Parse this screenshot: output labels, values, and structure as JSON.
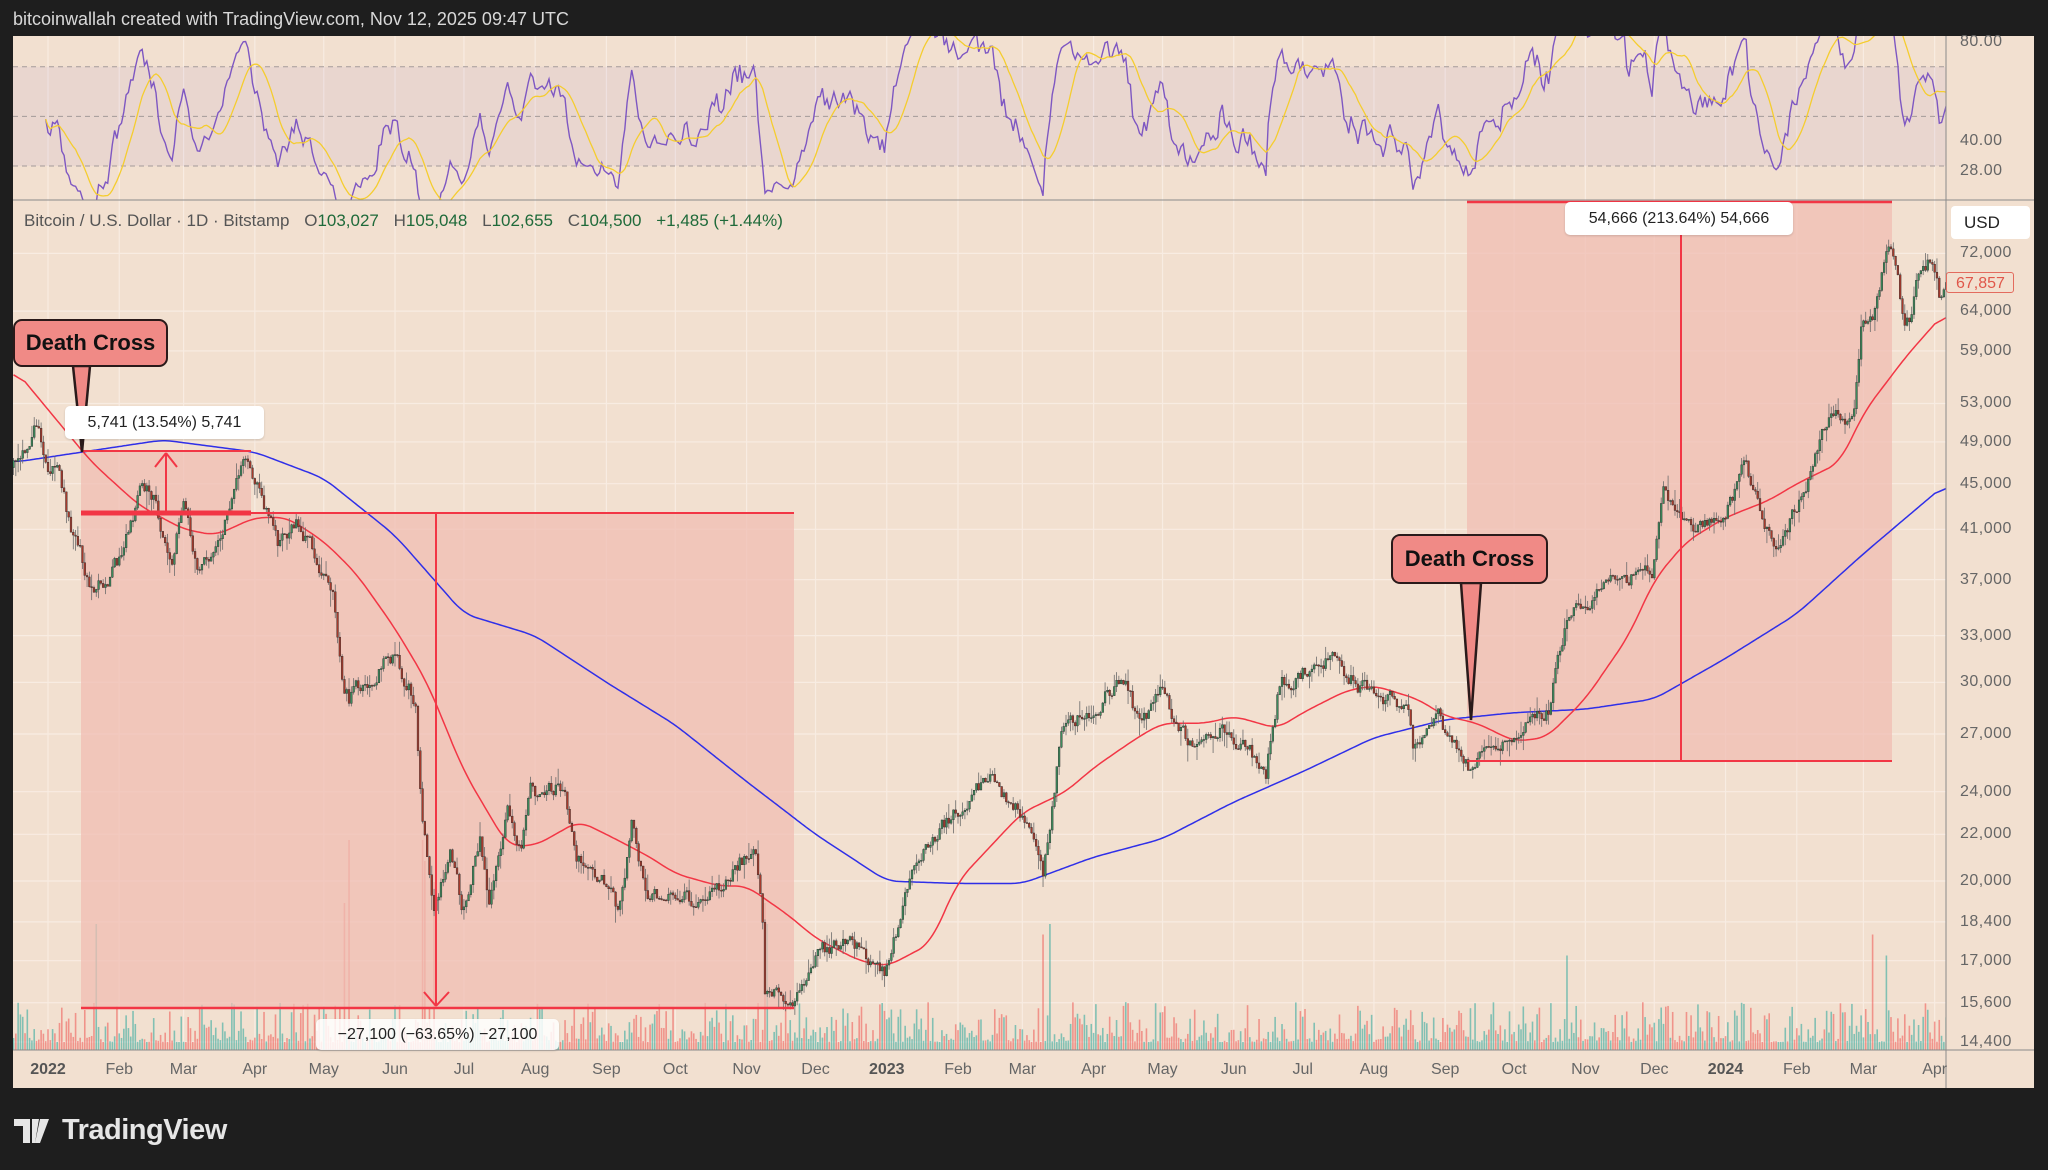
{
  "header": {
    "caption": "bitcoinwallah created with TradingView.com, Nov 12, 2025 09:47 UTC"
  },
  "legend": {
    "symbol": "Bitcoin / U.S. Dollar · 1D · Bitstamp",
    "ohlc": [
      {
        "k": "O",
        "v": "103,027"
      },
      {
        "k": "H",
        "v": "105,048"
      },
      {
        "k": "L",
        "v": "102,655"
      },
      {
        "k": "C",
        "v": "104,500"
      }
    ],
    "change": "+1,485 (+1.44%)"
  },
  "price_axis": {
    "currency": "USD",
    "last_price": "67,857"
  },
  "annotations": {
    "death_cross_1": "Death Cross",
    "death_cross_2": "Death Cross",
    "measure_1": "5,741 (13.54%) 5,741",
    "measure_2": "−27,100 (−63.65%) −27,100",
    "measure_3": "54,666 (213.64%) 54,666"
  },
  "branding": {
    "logo_text": "TradingView"
  },
  "colors": {
    "up": "#3d8a5c",
    "down": "#a63a2c",
    "ma50": "#f23645",
    "ma200": "#2f2fe8",
    "rsi": "#7e57c2",
    "rsi_ma": "#f5cd2f",
    "measure_fill": "#f0bdb3",
    "measure_line": "#f23645"
  },
  "chart_data": {
    "type": "candlestick",
    "title": "Bitcoin / U.S. Dollar · 1D · Bitstamp",
    "y_scale": "log",
    "ylim": [
      14400,
      76000
    ],
    "price_ticks": [
      72000,
      64000,
      59000,
      53000,
      49000,
      45000,
      41000,
      37000,
      33000,
      30000,
      27000,
      24000,
      22000,
      20000,
      18400,
      17000,
      15600,
      14400
    ],
    "price_tick_labels": [
      "72,000",
      "64,000",
      "59,000",
      "53,000",
      "49,000",
      "45,000",
      "41,000",
      "37,000",
      "33,000",
      "30,000",
      "27,000",
      "24,000",
      "22,000",
      "20,000",
      "18,400",
      "17,000",
      "15,600",
      "14,400"
    ],
    "time_ticks": [
      {
        "label": "2022",
        "date": "2022-01-01",
        "bold": true
      },
      {
        "label": "Feb",
        "date": "2022-02-01"
      },
      {
        "label": "Mar",
        "date": "2022-03-01"
      },
      {
        "label": "Apr",
        "date": "2022-04-01"
      },
      {
        "label": "May",
        "date": "2022-05-01"
      },
      {
        "label": "Jun",
        "date": "2022-06-01"
      },
      {
        "label": "Jul",
        "date": "2022-07-01"
      },
      {
        "label": "Aug",
        "date": "2022-08-01"
      },
      {
        "label": "Sep",
        "date": "2022-09-01"
      },
      {
        "label": "Oct",
        "date": "2022-10-01"
      },
      {
        "label": "Nov",
        "date": "2022-11-01"
      },
      {
        "label": "Dec",
        "date": "2022-12-01"
      },
      {
        "label": "2023",
        "date": "2023-01-01",
        "bold": true
      },
      {
        "label": "Feb",
        "date": "2023-02-01"
      },
      {
        "label": "Mar",
        "date": "2023-03-01"
      },
      {
        "label": "Apr",
        "date": "2023-04-01"
      },
      {
        "label": "May",
        "date": "2023-05-01"
      },
      {
        "label": "Jun",
        "date": "2023-06-01"
      },
      {
        "label": "Jul",
        "date": "2023-07-01"
      },
      {
        "label": "Aug",
        "date": "2023-08-01"
      },
      {
        "label": "Sep",
        "date": "2023-09-01"
      },
      {
        "label": "Oct",
        "date": "2023-10-01"
      },
      {
        "label": "Nov",
        "date": "2023-11-01"
      },
      {
        "label": "Dec",
        "date": "2023-12-01"
      },
      {
        "label": "2024",
        "date": "2024-01-01",
        "bold": true
      },
      {
        "label": "Feb",
        "date": "2024-02-01"
      },
      {
        "label": "Mar",
        "date": "2024-03-01"
      },
      {
        "label": "Apr",
        "date": "2024-04-01"
      }
    ],
    "close_keypoints": [
      [
        "2021-12-17",
        46500
      ],
      [
        "2021-12-27",
        50700
      ],
      [
        "2022-01-01",
        47000
      ],
      [
        "2022-01-05",
        46000
      ],
      [
        "2022-01-10",
        41800
      ],
      [
        "2022-01-21",
        36000
      ],
      [
        "2022-01-24",
        36500
      ],
      [
        "2022-02-01",
        38500
      ],
      [
        "2022-02-10",
        44000
      ],
      [
        "2022-02-16",
        44000
      ],
      [
        "2022-02-24",
        38000
      ],
      [
        "2022-03-01",
        44000
      ],
      [
        "2022-03-07",
        38000
      ],
      [
        "2022-03-15",
        39000
      ],
      [
        "2022-03-28",
        47000
      ],
      [
        "2022-04-01",
        45800
      ],
      [
        "2022-04-11",
        39500
      ],
      [
        "2022-04-20",
        41500
      ],
      [
        "2022-04-30",
        38000
      ],
      [
        "2022-05-05",
        36500
      ],
      [
        "2022-05-09",
        30000
      ],
      [
        "2022-05-12",
        29000
      ],
      [
        "2022-05-31",
        31700
      ],
      [
        "2022-06-10",
        29000
      ],
      [
        "2022-06-13",
        22500
      ],
      [
        "2022-06-18",
        19000
      ],
      [
        "2022-06-25",
        21300
      ],
      [
        "2022-06-30",
        19000
      ],
      [
        "2022-07-08",
        21600
      ],
      [
        "2022-07-12",
        19300
      ],
      [
        "2022-07-20",
        23200
      ],
      [
        "2022-07-26",
        21000
      ],
      [
        "2022-07-30",
        23800
      ],
      [
        "2022-08-14",
        24400
      ],
      [
        "2022-08-19",
        21200
      ],
      [
        "2022-08-31",
        20000
      ],
      [
        "2022-09-06",
        18800
      ],
      [
        "2022-09-12",
        22300
      ],
      [
        "2022-09-19",
        19500
      ],
      [
        "2022-09-30",
        19400
      ],
      [
        "2022-10-13",
        19200
      ],
      [
        "2022-10-25",
        20100
      ],
      [
        "2022-10-29",
        20800
      ],
      [
        "2022-11-05",
        21300
      ],
      [
        "2022-11-08",
        18500
      ],
      [
        "2022-11-09",
        15800
      ],
      [
        "2022-11-21",
        15800
      ],
      [
        "2022-11-30",
        17100
      ],
      [
        "2022-12-14",
        17800
      ],
      [
        "2022-12-31",
        16550
      ],
      [
        "2023-01-14",
        20900
      ],
      [
        "2023-01-31",
        23100
      ],
      [
        "2023-02-16",
        24500
      ],
      [
        "2023-02-28",
        23100
      ],
      [
        "2023-03-10",
        20100
      ],
      [
        "2023-03-18",
        27400
      ],
      [
        "2023-03-31",
        28400
      ],
      [
        "2023-04-14",
        30400
      ],
      [
        "2023-04-21",
        27300
      ],
      [
        "2023-04-30",
        29200
      ],
      [
        "2023-05-12",
        26800
      ],
      [
        "2023-05-31",
        27200
      ],
      [
        "2023-06-15",
        25000
      ],
      [
        "2023-06-21",
        30000
      ],
      [
        "2023-07-13",
        31400
      ],
      [
        "2023-07-31",
        29200
      ],
      [
        "2023-08-16",
        28700
      ],
      [
        "2023-08-18",
        26100
      ],
      [
        "2023-08-29",
        27700
      ],
      [
        "2023-09-11",
        25100
      ],
      [
        "2023-09-30",
        27000
      ],
      [
        "2023-10-16",
        28500
      ],
      [
        "2023-10-24",
        34500
      ],
      [
        "2023-10-31",
        34600
      ],
      [
        "2023-11-09",
        36700
      ],
      [
        "2023-11-30",
        37700
      ],
      [
        "2023-12-05",
        44000
      ],
      [
        "2023-12-17",
        41400
      ],
      [
        "2023-12-31",
        42300
      ],
      [
        "2024-01-10",
        46600
      ],
      [
        "2024-01-22",
        39500
      ],
      [
        "2024-01-31",
        42500
      ],
      [
        "2024-02-09",
        47100
      ],
      [
        "2024-02-15",
        51800
      ],
      [
        "2024-02-26",
        51800
      ],
      [
        "2024-02-29",
        61200
      ],
      [
        "2024-03-05",
        63800
      ],
      [
        "2024-03-11",
        72000
      ],
      [
        "2024-03-14",
        71400
      ],
      [
        "2024-03-19",
        62000
      ],
      [
        "2024-03-22",
        63800
      ],
      [
        "2024-03-26",
        70000
      ],
      [
        "2024-03-31",
        71300
      ],
      [
        "2024-04-03",
        65900
      ],
      [
        "2024-04-06",
        67857
      ]
    ],
    "ma50_keypoints": [
      [
        "2021-12-17",
        57000
      ],
      [
        "2022-01-20",
        47000
      ],
      [
        "2022-02-10",
        43000
      ],
      [
        "2022-03-01",
        41000
      ],
      [
        "2022-03-15",
        40500
      ],
      [
        "2022-04-01",
        42000
      ],
      [
        "2022-04-15",
        42000
      ],
      [
        "2022-05-01",
        40000
      ],
      [
        "2022-05-15",
        37500
      ],
      [
        "2022-06-01",
        33500
      ],
      [
        "2022-06-15",
        30000
      ],
      [
        "2022-07-01",
        25000
      ],
      [
        "2022-07-20",
        21500
      ],
      [
        "2022-08-01",
        21500
      ],
      [
        "2022-08-20",
        22600
      ],
      [
        "2022-09-01",
        22000
      ],
      [
        "2022-09-20",
        21000
      ],
      [
        "2022-10-01",
        20300
      ],
      [
        "2022-10-20",
        19800
      ],
      [
        "2022-11-01",
        19800
      ],
      [
        "2022-11-20",
        18600
      ],
      [
        "2022-12-01",
        17800
      ],
      [
        "2022-12-20",
        17000
      ],
      [
        "2023-01-01",
        16800
      ],
      [
        "2023-01-20",
        17600
      ],
      [
        "2023-02-01",
        20000
      ],
      [
        "2023-02-20",
        22000
      ],
      [
        "2023-03-01",
        23000
      ],
      [
        "2023-03-20",
        24000
      ],
      [
        "2023-04-01",
        25200
      ],
      [
        "2023-04-20",
        26800
      ],
      [
        "2023-05-01",
        27600
      ],
      [
        "2023-05-20",
        27600
      ],
      [
        "2023-06-01",
        28000
      ],
      [
        "2023-06-20",
        27300
      ],
      [
        "2023-07-01",
        28200
      ],
      [
        "2023-07-20",
        29500
      ],
      [
        "2023-08-01",
        29800
      ],
      [
        "2023-08-20",
        29000
      ],
      [
        "2023-09-01",
        28000
      ],
      [
        "2023-09-15",
        27600
      ],
      [
        "2023-10-01",
        26600
      ],
      [
        "2023-10-15",
        26800
      ],
      [
        "2023-11-01",
        29000
      ],
      [
        "2023-11-20",
        33000
      ],
      [
        "2023-12-01",
        37000
      ],
      [
        "2023-12-15",
        40000
      ],
      [
        "2024-01-01",
        42000
      ],
      [
        "2024-01-20",
        43500
      ],
      [
        "2024-02-01",
        45000
      ],
      [
        "2024-02-20",
        47000
      ],
      [
        "2024-03-01",
        52000
      ],
      [
        "2024-03-20",
        58500
      ],
      [
        "2024-04-06",
        64000
      ]
    ],
    "ma200_keypoints": [
      [
        "2021-12-17",
        47000
      ],
      [
        "2022-02-20",
        49200
      ],
      [
        "2022-04-01",
        48000
      ],
      [
        "2022-05-01",
        45500
      ],
      [
        "2022-06-01",
        40500
      ],
      [
        "2022-07-01",
        34500
      ],
      [
        "2022-08-01",
        33000
      ],
      [
        "2022-09-01",
        30000
      ],
      [
        "2022-10-01",
        27500
      ],
      [
        "2022-11-01",
        24500
      ],
      [
        "2022-12-01",
        22000
      ],
      [
        "2023-01-01",
        20000
      ],
      [
        "2023-02-01",
        19900
      ],
      [
        "2023-03-01",
        19900
      ],
      [
        "2023-04-01",
        21000
      ],
      [
        "2023-05-01",
        21800
      ],
      [
        "2023-06-01",
        23500
      ],
      [
        "2023-07-01",
        25000
      ],
      [
        "2023-08-01",
        26800
      ],
      [
        "2023-09-01",
        27800
      ],
      [
        "2023-10-01",
        28200
      ],
      [
        "2023-11-01",
        28400
      ],
      [
        "2023-12-01",
        29000
      ],
      [
        "2024-01-01",
        31500
      ],
      [
        "2024-02-01",
        34500
      ],
      [
        "2024-03-01",
        39000
      ],
      [
        "2024-04-06",
        45000
      ]
    ],
    "volume_spikes": [
      [
        "2022-01-22",
        0.6
      ],
      [
        "2022-05-10",
        0.7
      ],
      [
        "2022-05-12",
        1.0
      ],
      [
        "2022-06-13",
        1.0
      ],
      [
        "2022-06-14",
        0.9
      ],
      [
        "2022-06-18",
        0.8
      ],
      [
        "2022-11-09",
        0.7
      ],
      [
        "2022-11-10",
        0.6
      ],
      [
        "2023-03-10",
        0.55
      ],
      [
        "2023-03-13",
        0.6
      ],
      [
        "2023-10-24",
        0.45
      ],
      [
        "2024-03-05",
        0.55
      ],
      [
        "2024-03-11",
        0.45
      ]
    ],
    "rsi": {
      "period": 14,
      "ma_period": 14,
      "ticks": [
        80,
        40,
        28
      ],
      "tick_labels": [
        "80.00",
        "40.00",
        "28.00"
      ],
      "bands": [
        70,
        50,
        30
      ]
    }
  }
}
